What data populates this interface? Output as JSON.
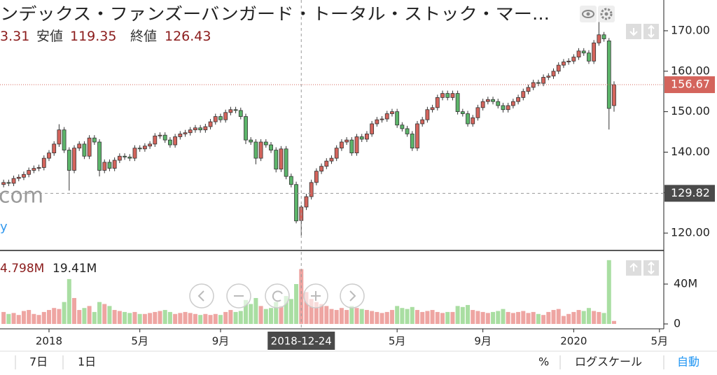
{
  "chart_data": {
    "type": "candlestick",
    "title": "ンデックス・ファンズーバンガード・トータル・ストック・マー...",
    "ohlc_text": [
      "3.31",
      "安値",
      119.35,
      "終値",
      126.43
    ],
    "volume_text": [
      {
        "value": 4.798,
        "label": "4.798M"
      },
      {
        "value": 19.41,
        "label": "19.41M"
      }
    ],
    "watermark": [
      "com",
      "y"
    ],
    "toolbar": [
      "7日",
      "1日",
      "%",
      "ログスケール",
      "自動"
    ],
    "x": [
      "2017-11-06",
      "2017-11-13",
      "2017-11-20",
      "2017-11-27",
      "2017-12-04",
      "2017-12-11",
      "2017-12-18",
      "2017-12-25",
      "2018-01-01",
      "2018-01-08",
      "2018-01-15",
      "2018-01-22",
      "2018-01-29",
      "2018-02-05",
      "2018-02-12",
      "2018-02-19",
      "2018-02-26",
      "2018-03-05",
      "2018-03-12",
      "2018-03-19",
      "2018-03-26",
      "2018-04-02",
      "2018-04-09",
      "2018-04-16",
      "2018-04-23",
      "2018-04-30",
      "2018-05-07",
      "2018-05-14",
      "2018-05-21",
      "2018-05-28",
      "2018-06-04",
      "2018-06-11",
      "2018-06-18",
      "2018-06-25",
      "2018-07-02",
      "2018-07-09",
      "2018-07-16",
      "2018-07-23",
      "2018-07-30",
      "2018-08-06",
      "2018-08-13",
      "2018-08-20",
      "2018-08-27",
      "2018-09-03",
      "2018-09-10",
      "2018-09-17",
      "2018-09-24",
      "2018-10-01",
      "2018-10-08",
      "2018-10-15",
      "2018-10-22",
      "2018-10-29",
      "2018-11-05",
      "2018-11-12",
      "2018-11-19",
      "2018-11-26",
      "2018-12-03",
      "2018-12-10",
      "2018-12-17",
      "2018-12-24",
      "2018-12-31",
      "2019-01-07",
      "2019-01-14",
      "2019-01-21",
      "2019-01-28",
      "2019-02-04",
      "2019-02-11",
      "2019-02-18",
      "2019-02-25",
      "2019-03-04",
      "2019-03-11",
      "2019-03-18",
      "2019-03-25",
      "2019-04-01",
      "2019-04-08",
      "2019-04-15",
      "2019-04-22",
      "2019-04-29",
      "2019-05-06",
      "2019-05-13",
      "2019-05-20",
      "2019-05-27",
      "2019-06-03",
      "2019-06-10",
      "2019-06-17",
      "2019-06-24",
      "2019-07-01",
      "2019-07-08",
      "2019-07-15",
      "2019-07-22",
      "2019-07-29",
      "2019-08-05",
      "2019-08-12",
      "2019-08-19",
      "2019-08-26",
      "2019-09-02",
      "2019-09-09",
      "2019-09-16",
      "2019-09-23",
      "2019-09-30",
      "2019-10-07",
      "2019-10-14",
      "2019-10-21",
      "2019-10-28",
      "2019-11-04",
      "2019-11-11",
      "2019-11-18",
      "2019-11-25",
      "2019-12-02",
      "2019-12-09",
      "2019-12-16",
      "2019-12-23",
      "2019-12-30",
      "2020-01-06",
      "2020-01-13",
      "2020-01-20",
      "2020-01-27",
      "2020-02-03",
      "2020-02-10",
      "2020-02-17",
      "2020-02-24",
      "2020-03-02"
    ],
    "open": [
      132.0,
      132.5,
      132.3,
      133.5,
      133.8,
      134.5,
      135.5,
      136.0,
      136.2,
      138.5,
      139.8,
      142.0,
      145.5,
      140.5,
      135.5,
      141.0,
      142.0,
      139.0,
      143.5,
      142.5,
      135.5,
      137.5,
      136.0,
      138.0,
      139.0,
      138.8,
      138.5,
      141.0,
      140.8,
      141.5,
      142.0,
      144.0,
      144.2,
      143.0,
      141.8,
      143.8,
      144.5,
      144.8,
      145.5,
      146.0,
      145.5,
      146.3,
      147.5,
      148.8,
      148.0,
      149.8,
      150.5,
      150.3,
      148.8,
      143.0,
      142.5,
      138.5,
      142.5,
      141.8,
      140.5,
      135.8,
      140.8,
      134.0,
      132.0,
      123.1,
      126.43,
      129.0,
      132.5,
      135.3,
      136.5,
      137.8,
      138.5,
      141.0,
      142.5,
      143.0,
      139.8,
      143.8,
      143.2,
      144.5,
      147.0,
      148.0,
      148.2,
      149.5,
      150.0,
      146.7,
      145.8,
      144.5,
      141.0,
      147.0,
      148.0,
      150.5,
      151.0,
      153.5,
      154.5,
      153.5,
      154.5,
      150.0,
      149.5,
      147.0,
      148.5,
      151.0,
      152.5,
      153.0,
      152.5,
      151.5,
      150.5,
      151.5,
      152.5,
      153.5,
      155.0,
      156.0,
      157.2,
      157.0,
      158.5,
      158.8,
      160.0,
      161.5,
      162.3,
      162.5,
      163.5,
      165.0,
      164.5,
      162.5,
      167.0,
      169.0,
      167.5,
      151.5
    ],
    "high": [
      133.2,
      133.2,
      134.2,
      134.5,
      135.2,
      136.2,
      136.7,
      136.9,
      139.2,
      140.5,
      142.7,
      146.9,
      146.2,
      141.2,
      141.7,
      142.7,
      142.7,
      144.2,
      144.2,
      143.2,
      138.2,
      138.2,
      138.7,
      139.7,
      139.7,
      139.5,
      141.7,
      141.7,
      142.2,
      142.7,
      144.7,
      144.9,
      144.9,
      143.7,
      144.5,
      145.2,
      145.5,
      146.2,
      146.7,
      146.7,
      147.0,
      148.2,
      149.5,
      149.5,
      150.5,
      151.2,
      151.2,
      151.0,
      149.5,
      143.7,
      143.2,
      143.2,
      143.2,
      142.5,
      141.2,
      141.5,
      141.5,
      134.7,
      132.7,
      126.9,
      129.7,
      133.2,
      136.0,
      137.2,
      138.5,
      139.2,
      141.7,
      143.2,
      143.7,
      143.7,
      144.5,
      144.5,
      145.2,
      147.7,
      148.7,
      148.9,
      150.2,
      150.7,
      150.7,
      147.4,
      146.5,
      145.2,
      147.7,
      148.7,
      151.2,
      151.7,
      154.2,
      155.2,
      155.2,
      155.2,
      155.2,
      150.7,
      150.2,
      149.2,
      151.7,
      153.2,
      153.7,
      153.7,
      153.2,
      152.2,
      152.2,
      153.2,
      154.2,
      155.7,
      156.7,
      157.9,
      157.9,
      159.2,
      159.5,
      160.7,
      162.2,
      163.0,
      163.2,
      164.2,
      165.7,
      165.7,
      165.2,
      167.7,
      172.5,
      169.7,
      168.2,
      157.5
    ],
    "low": [
      131.3,
      131.6,
      131.6,
      132.8,
      133.1,
      133.8,
      134.8,
      135.3,
      135.5,
      137.8,
      139.1,
      141.3,
      139.8,
      130.5,
      134.8,
      140.3,
      138.3,
      138.3,
      141.8,
      134.0,
      134.8,
      135.3,
      135.3,
      137.3,
      138.1,
      137.8,
      137.8,
      140.1,
      140.1,
      140.8,
      141.3,
      143.3,
      142.3,
      141.1,
      141.1,
      143.1,
      143.8,
      144.1,
      144.8,
      144.8,
      144.8,
      145.6,
      146.8,
      147.3,
      147.3,
      149.1,
      149.6,
      148.1,
      142.0,
      141.8,
      137.0,
      137.8,
      141.1,
      139.8,
      135.0,
      135.1,
      133.3,
      131.3,
      122.4,
      119.35,
      125.7,
      128.3,
      131.8,
      134.6,
      135.8,
      137.1,
      137.8,
      140.3,
      141.8,
      139.1,
      139.1,
      142.5,
      142.5,
      143.8,
      146.3,
      147.3,
      147.5,
      148.8,
      146.0,
      145.1,
      143.8,
      140.3,
      140.3,
      146.3,
      147.3,
      149.8,
      150.3,
      152.8,
      152.8,
      152.8,
      149.3,
      148.8,
      146.3,
      146.3,
      147.8,
      150.3,
      151.8,
      151.8,
      150.8,
      149.8,
      149.8,
      150.8,
      151.8,
      152.8,
      154.3,
      155.3,
      156.3,
      156.3,
      157.8,
      158.1,
      159.3,
      160.8,
      161.6,
      161.8,
      162.8,
      163.8,
      161.8,
      161.8,
      166.3,
      167.3,
      145.6,
      150.0
    ],
    "close": [
      132.5,
      132.3,
      133.5,
      133.8,
      134.5,
      135.5,
      136.0,
      136.2,
      138.5,
      139.8,
      142.0,
      145.5,
      140.5,
      135.5,
      141.0,
      142.0,
      139.0,
      143.5,
      142.5,
      135.5,
      137.5,
      136.0,
      138.0,
      139.0,
      138.8,
      138.5,
      141.0,
      140.8,
      141.5,
      142.0,
      144.0,
      144.2,
      143.0,
      141.8,
      143.8,
      144.5,
      144.8,
      145.5,
      146.0,
      145.5,
      146.3,
      147.5,
      148.8,
      148.0,
      149.8,
      150.5,
      150.3,
      148.8,
      143.0,
      142.5,
      138.5,
      142.5,
      141.8,
      140.5,
      135.8,
      140.8,
      134.0,
      132.0,
      123.0,
      126.43,
      129.0,
      132.5,
      135.3,
      136.5,
      137.8,
      138.5,
      141.0,
      142.5,
      143.0,
      139.8,
      143.8,
      143.2,
      144.5,
      147.0,
      148.0,
      148.2,
      149.5,
      150.0,
      146.7,
      145.8,
      144.5,
      141.0,
      147.0,
      148.0,
      150.5,
      151.0,
      153.5,
      154.5,
      153.5,
      154.5,
      150.0,
      149.5,
      147.0,
      148.5,
      151.0,
      152.5,
      153.0,
      152.5,
      151.5,
      150.5,
      151.5,
      152.5,
      153.5,
      155.0,
      156.0,
      157.2,
      157.0,
      158.5,
      158.8,
      160.0,
      161.5,
      162.3,
      162.5,
      163.5,
      165.0,
      164.5,
      162.5,
      167.0,
      169.0,
      168.0,
      150.8,
      156.67
    ],
    "volume": [
      12,
      10,
      11,
      9,
      13,
      14,
      10,
      9,
      12,
      14,
      16,
      15,
      22,
      45,
      26,
      14,
      16,
      18,
      12,
      22,
      20,
      18,
      14,
      13,
      12,
      11,
      12,
      10,
      10,
      11,
      12,
      13,
      14,
      12,
      10,
      11,
      12,
      11,
      10,
      9,
      10,
      9,
      10,
      9,
      12,
      14,
      12,
      13,
      24,
      20,
      26,
      18,
      15,
      16,
      22,
      18,
      28,
      25,
      40,
      55,
      32,
      25,
      22,
      20,
      18,
      15,
      14,
      16,
      14,
      18,
      16,
      15,
      14,
      13,
      12,
      11,
      12,
      14,
      18,
      16,
      15,
      17,
      14,
      12,
      13,
      14,
      12,
      11,
      12,
      12,
      18,
      17,
      19,
      14,
      13,
      12,
      11,
      12,
      13,
      15,
      12,
      11,
      12,
      13,
      11,
      12,
      10,
      9,
      12,
      14,
      15,
      8,
      10,
      12,
      14,
      13,
      16,
      13,
      12,
      11,
      64,
      3
    ],
    "up_color": "#d4645c",
    "down_color": "#5cb56a",
    "up_volume_color": "#eea5a2",
    "down_volume_color": "#a9dea2",
    "xlim": [
      "2017-11-01",
      "2020-05-10"
    ],
    "xticks": [
      {
        "value": "2018-01-08",
        "label": "2018"
      },
      {
        "value": "2018-05-14",
        "label": "5月"
      },
      {
        "value": "2018-09-03",
        "label": "9月"
      },
      {
        "value": "2019-05-06",
        "label": "5月"
      },
      {
        "value": "2019-09-02",
        "label": "9月"
      },
      {
        "value": "2020-01-06",
        "label": "2020"
      },
      {
        "value": "2020-05-04",
        "label": "5月"
      }
    ],
    "ylim": [
      115.7,
      177.6
    ],
    "yticks": [
      {
        "value": 120,
        "label": "120.00"
      },
      {
        "value": 130,
        "label": "130.00"
      },
      {
        "value": 140,
        "label": "140.00"
      },
      {
        "value": 150,
        "label": "150.00"
      },
      {
        "value": 160,
        "label": "160.00"
      },
      {
        "value": 170,
        "label": "170.00"
      }
    ],
    "volume_ylim": [
      -4.9,
      72.3
    ],
    "volume_yticks": [
      0,
      {
        "value": 40,
        "label": "40M"
      }
    ],
    "last_price": 156.67,
    "crosshair": {
      "x": "2018-12-24",
      "y": 129.82
    }
  }
}
